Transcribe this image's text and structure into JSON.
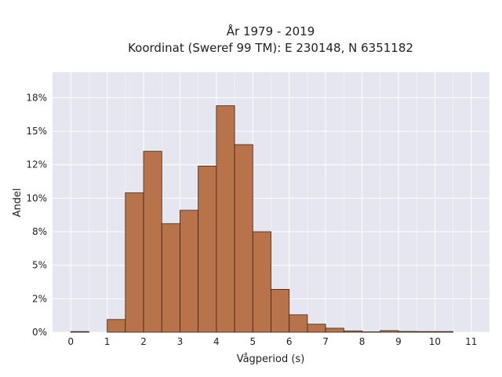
{
  "chart_data": {
    "type": "bar",
    "title": "År 1979 - 2019",
    "subtitle": "Koordinat (Sweref 99 TM): E 230148, N 6351182",
    "xlabel": "Vågperiod (s)",
    "ylabel": "Andel",
    "bin_width": 0.5,
    "bins": [
      {
        "start": 0.0,
        "value": 0.05
      },
      {
        "start": 0.5,
        "value": 0.0
      },
      {
        "start": 1.0,
        "value": 0.95
      },
      {
        "start": 1.5,
        "value": 10.4
      },
      {
        "start": 2.0,
        "value": 13.5
      },
      {
        "start": 2.5,
        "value": 8.1
      },
      {
        "start": 3.0,
        "value": 9.1
      },
      {
        "start": 3.5,
        "value": 12.4
      },
      {
        "start": 4.0,
        "value": 16.9
      },
      {
        "start": 4.5,
        "value": 14.0
      },
      {
        "start": 5.0,
        "value": 7.5
      },
      {
        "start": 5.5,
        "value": 3.2
      },
      {
        "start": 6.0,
        "value": 1.3
      },
      {
        "start": 6.5,
        "value": 0.6
      },
      {
        "start": 7.0,
        "value": 0.3
      },
      {
        "start": 7.5,
        "value": 0.1
      },
      {
        "start": 8.0,
        "value": 0.03
      },
      {
        "start": 8.5,
        "value": 0.12
      },
      {
        "start": 9.0,
        "value": 0.06
      },
      {
        "start": 9.5,
        "value": 0.05
      },
      {
        "start": 10.0,
        "value": 0.05
      }
    ],
    "xlim": [
      -0.5,
      11.5
    ],
    "ylim": [
      0,
      19.4
    ],
    "x_ticks": [
      0,
      1,
      2,
      3,
      4,
      5,
      6,
      7,
      8,
      9,
      10,
      11
    ],
    "y_ticks": [
      0,
      2.5,
      5,
      7.5,
      10,
      12.5,
      15,
      17.5
    ],
    "y_tick_labels": [
      "0%",
      "2%",
      "5%",
      "8%",
      "10%",
      "12%",
      "15%",
      "18%"
    ],
    "grid": true,
    "colors": {
      "bar_fill": "#b8734a",
      "bar_edge": "#3d2416",
      "plot_bg": "#e5e6f0",
      "grid": "#ffffff"
    }
  }
}
